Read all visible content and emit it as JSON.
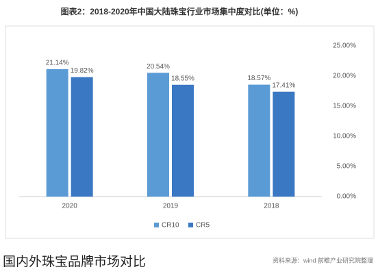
{
  "chart_data": {
    "type": "bar",
    "title": "图表2：2018-2020年中国大陆珠宝行业市场集中度对比(单位：%)",
    "categories": [
      "2020",
      "2019",
      "2018"
    ],
    "series": [
      {
        "name": "CR10",
        "color": "#5b9bd5",
        "values": [
          21.14,
          20.54,
          18.57
        ],
        "value_labels": [
          "21.14%",
          "20.54%",
          "18.57%"
        ]
      },
      {
        "name": "CR5",
        "color": "#3b78c4",
        "values": [
          19.82,
          18.55,
          17.41
        ],
        "value_labels": [
          "19.82%",
          "18.55%",
          "17.41%"
        ]
      }
    ],
    "ylim": [
      0,
      25
    ],
    "yticks": [
      {
        "value": 0,
        "label": "0.00%"
      },
      {
        "value": 5,
        "label": "5.00%"
      },
      {
        "value": 10,
        "label": "10.00%"
      },
      {
        "value": 15,
        "label": "15.00%"
      },
      {
        "value": 20,
        "label": "20.00%"
      },
      {
        "value": 25,
        "label": "25.00%"
      }
    ],
    "grid": false,
    "source": "资料来源：wind 前瞻产业研究院整理",
    "caption": "国内外珠宝品牌市场对比"
  }
}
